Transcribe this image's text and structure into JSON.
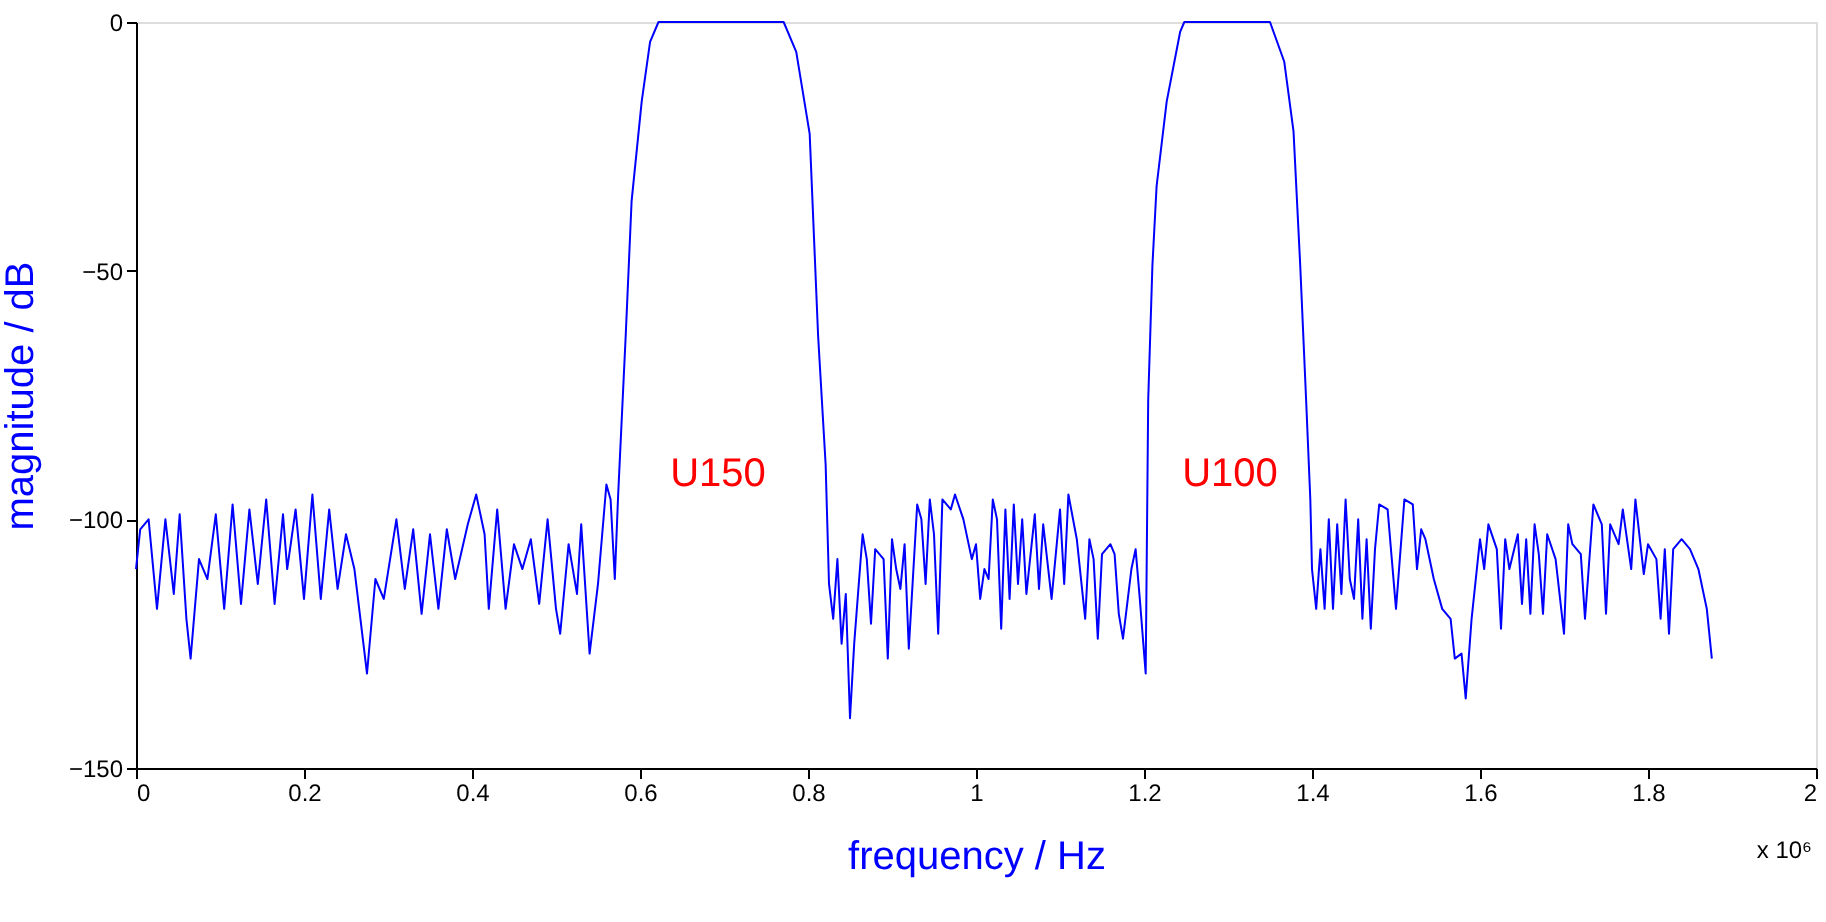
{
  "chart_data": {
    "type": "line",
    "xlabel": "frequency / Hz",
    "ylabel": "magnitude / dB",
    "xlim": [
      0,
      2
    ],
    "ylim": [
      -150,
      0
    ],
    "xticks": [
      0,
      0.2,
      0.4,
      0.6,
      0.8,
      1,
      1.2,
      1.4,
      1.6,
      1.8,
      2
    ],
    "yticks": [
      -150,
      -100,
      -50,
      0
    ],
    "grid": false,
    "annotations": [
      "U150",
      "U100",
      "x 10⁶"
    ],
    "series": [
      {
        "color": "#0000ff",
        "x": [
          0,
          0.005,
          0.015,
          0.025,
          0.035,
          0.045,
          0.052,
          0.06,
          0.065,
          0.075,
          0.085,
          0.095,
          0.105,
          0.115,
          0.125,
          0.135,
          0.145,
          0.155,
          0.165,
          0.175,
          0.18,
          0.19,
          0.2,
          0.21,
          0.22,
          0.23,
          0.24,
          0.25,
          0.26,
          0.27,
          0.275,
          0.285,
          0.295,
          0.31,
          0.32,
          0.33,
          0.34,
          0.35,
          0.36,
          0.37,
          0.38,
          0.395,
          0.405,
          0.415,
          0.42,
          0.43,
          0.44,
          0.45,
          0.46,
          0.47,
          0.48,
          0.49,
          0.5,
          0.505,
          0.515,
          0.525,
          0.53,
          0.54,
          0.55,
          0.56,
          0.565,
          0.57,
          0.574,
          0.583,
          0.59,
          0.602,
          0.612,
          0.622,
          0.771,
          0.786,
          0.802,
          0.812,
          0.821,
          0.825,
          0.83,
          0.835,
          0.84,
          0.845,
          0.85,
          0.855,
          0.865,
          0.87,
          0.875,
          0.88,
          0.89,
          0.895,
          0.9,
          0.905,
          0.91,
          0.915,
          0.92,
          0.93,
          0.935,
          0.94,
          0.945,
          0.95,
          0.955,
          0.96,
          0.97,
          0.975,
          0.985,
          0.995,
          1.0,
          1.005,
          1.01,
          1.015,
          1.02,
          1.025,
          1.03,
          1.035,
          1.04,
          1.045,
          1.05,
          1.055,
          1.06,
          1.07,
          1.075,
          1.08,
          1.09,
          1.1,
          1.105,
          1.11,
          1.12,
          1.13,
          1.135,
          1.14,
          1.145,
          1.15,
          1.16,
          1.165,
          1.17,
          1.175,
          1.185,
          1.19,
          1.195,
          1.202,
          1.205,
          1.21,
          1.215,
          1.227,
          1.243,
          1.248,
          1.35,
          1.367,
          1.378,
          1.386,
          1.393,
          1.398,
          1.4,
          1.405,
          1.41,
          1.415,
          1.42,
          1.425,
          1.43,
          1.435,
          1.44,
          1.445,
          1.45,
          1.455,
          1.46,
          1.465,
          1.47,
          1.475,
          1.48,
          1.49,
          1.495,
          1.5,
          1.51,
          1.52,
          1.525,
          1.53,
          1.535,
          1.545,
          1.555,
          1.565,
          1.57,
          1.578,
          1.583,
          1.59,
          1.6,
          1.605,
          1.61,
          1.62,
          1.625,
          1.63,
          1.635,
          1.645,
          1.65,
          1.655,
          1.66,
          1.665,
          1.67,
          1.675,
          1.68,
          1.69,
          1.7,
          1.705,
          1.71,
          1.72,
          1.725,
          1.735,
          1.745,
          1.75,
          1.755,
          1.765,
          1.77,
          1.78,
          1.785,
          1.795,
          1.8,
          1.81,
          1.815,
          1.82,
          1.825,
          1.83,
          1.84,
          1.85,
          1.86,
          1.87,
          1.876
        ],
        "values": [
          -110,
          -102,
          -100,
          -118,
          -100,
          -115,
          -99,
          -120,
          -128,
          -108,
          -112,
          -99,
          -118,
          -97,
          -117,
          -98,
          -113,
          -96,
          -117,
          -99,
          -110,
          -98,
          -116,
          -95,
          -116,
          -98,
          -114,
          -103,
          -110,
          -124,
          -131,
          -112,
          -116,
          -100,
          -114,
          -102,
          -119,
          -103,
          -118,
          -102,
          -112,
          -101,
          -95,
          -103,
          -118,
          -98,
          -118,
          -105,
          -110,
          -104,
          -117,
          -100,
          -118,
          -123,
          -105,
          -115,
          -101,
          -127,
          -113,
          -93,
          -96,
          -112,
          -95,
          -63,
          -36,
          -16,
          -4,
          0,
          0,
          -6,
          -22.5,
          -63,
          -89,
          -113,
          -120,
          -108,
          -125,
          -115,
          -140,
          -125,
          -103,
          -108,
          -121,
          -106,
          -108,
          -128,
          -104,
          -110,
          -114,
          -105,
          -126,
          -97,
          -100,
          -113,
          -96,
          -103,
          -123,
          -96,
          -98,
          -95,
          -100,
          -108,
          -105,
          -116,
          -110,
          -112,
          -96,
          -100,
          -122,
          -98,
          -116,
          -97,
          -113,
          -100,
          -115,
          -99,
          -114,
          -101,
          -116,
          -98,
          -113,
          -95,
          -104,
          -120,
          -104,
          -108,
          -124,
          -107,
          -105,
          -107,
          -119,
          -124,
          -110,
          -106,
          -116,
          -131,
          -76,
          -49,
          -33,
          -16,
          -2,
          0,
          0,
          -8,
          -22,
          -49,
          -76,
          -96,
          -110,
          -118,
          -106,
          -118,
          -100,
          -118,
          -101,
          -115,
          -96,
          -112,
          -116,
          -100,
          -120,
          -104,
          -122,
          -106,
          -97,
          -98,
          -108,
          -118,
          -96,
          -97,
          -110,
          -102,
          -104,
          -112,
          -118,
          -120,
          -128,
          -127,
          -136,
          -120,
          -104,
          -110,
          -101,
          -106,
          -122,
          -104,
          -110,
          -103,
          -117,
          -104,
          -119,
          -101,
          -107,
          -119,
          -103,
          -108,
          -123,
          -101,
          -105,
          -107,
          -120,
          -97,
          -101,
          -119,
          -101,
          -105,
          -98,
          -110,
          -96,
          -111,
          -105,
          -108,
          -120,
          -106,
          -123,
          -106,
          -104,
          -106,
          -110,
          -118,
          -128
        ]
      }
    ]
  }
}
